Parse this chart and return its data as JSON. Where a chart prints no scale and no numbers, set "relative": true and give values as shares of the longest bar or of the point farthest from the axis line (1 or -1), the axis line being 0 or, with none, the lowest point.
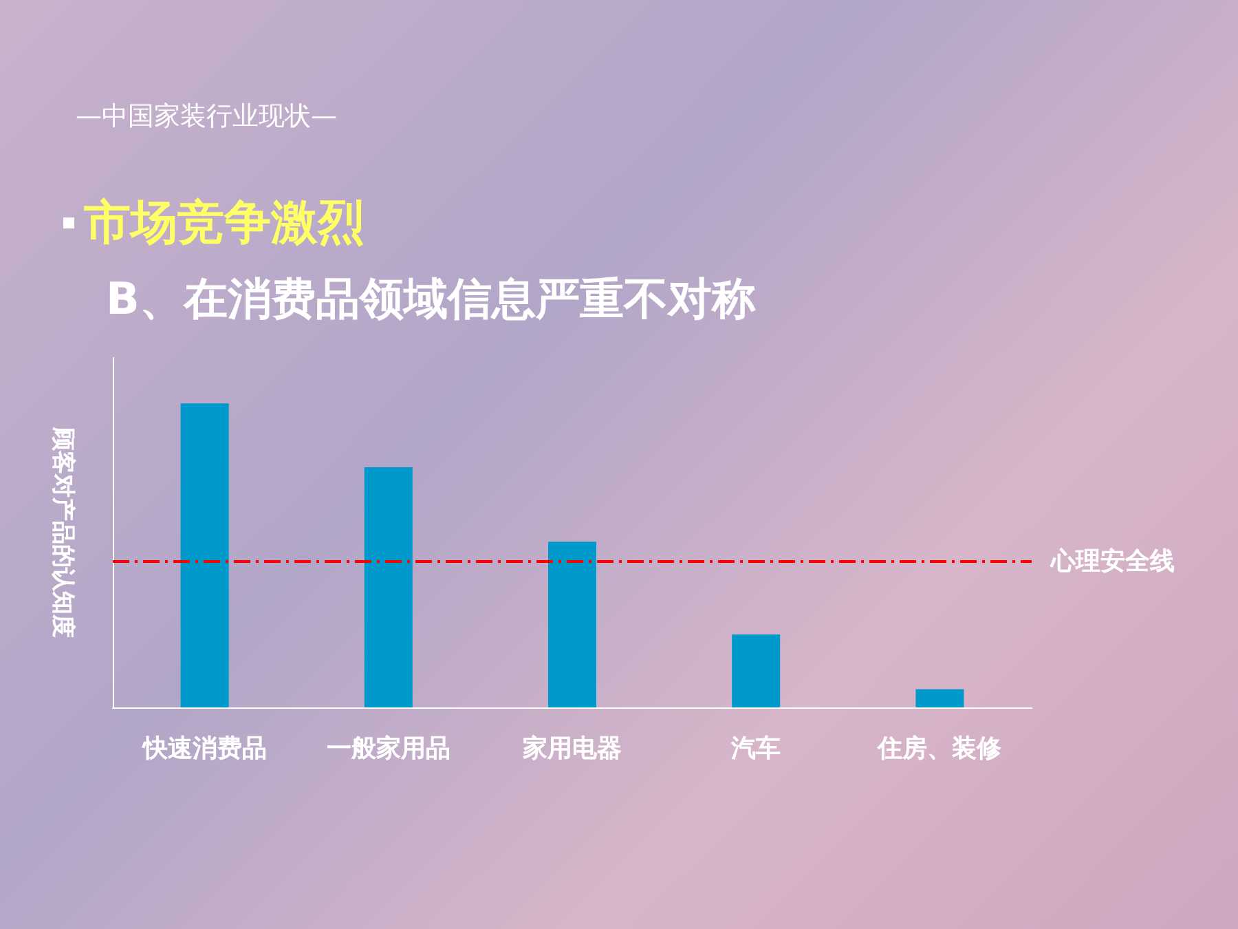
{
  "chart_data": {
    "type": "bar",
    "title": "市场竞争激烈",
    "subtitle": "B、在消费品领域信息严重不对称",
    "annotations": [
      "—中国家装行业现状—"
    ],
    "ylabel": "顾客对产品的认知度",
    "relative": true,
    "categories": [
      "快速消费品",
      "一般家用品",
      "家用电器",
      "汽车",
      "住房、装修"
    ],
    "values": [
      1,
      0.79,
      0.545,
      0.24,
      0.06
    ],
    "color": "#0099cc",
    "ref_lines": [
      {
        "axis": "y",
        "value": 0.485,
        "label": "心理安全线",
        "color": "#ff0000",
        "line_style": "dashed"
      }
    ],
    "grid": false
  }
}
